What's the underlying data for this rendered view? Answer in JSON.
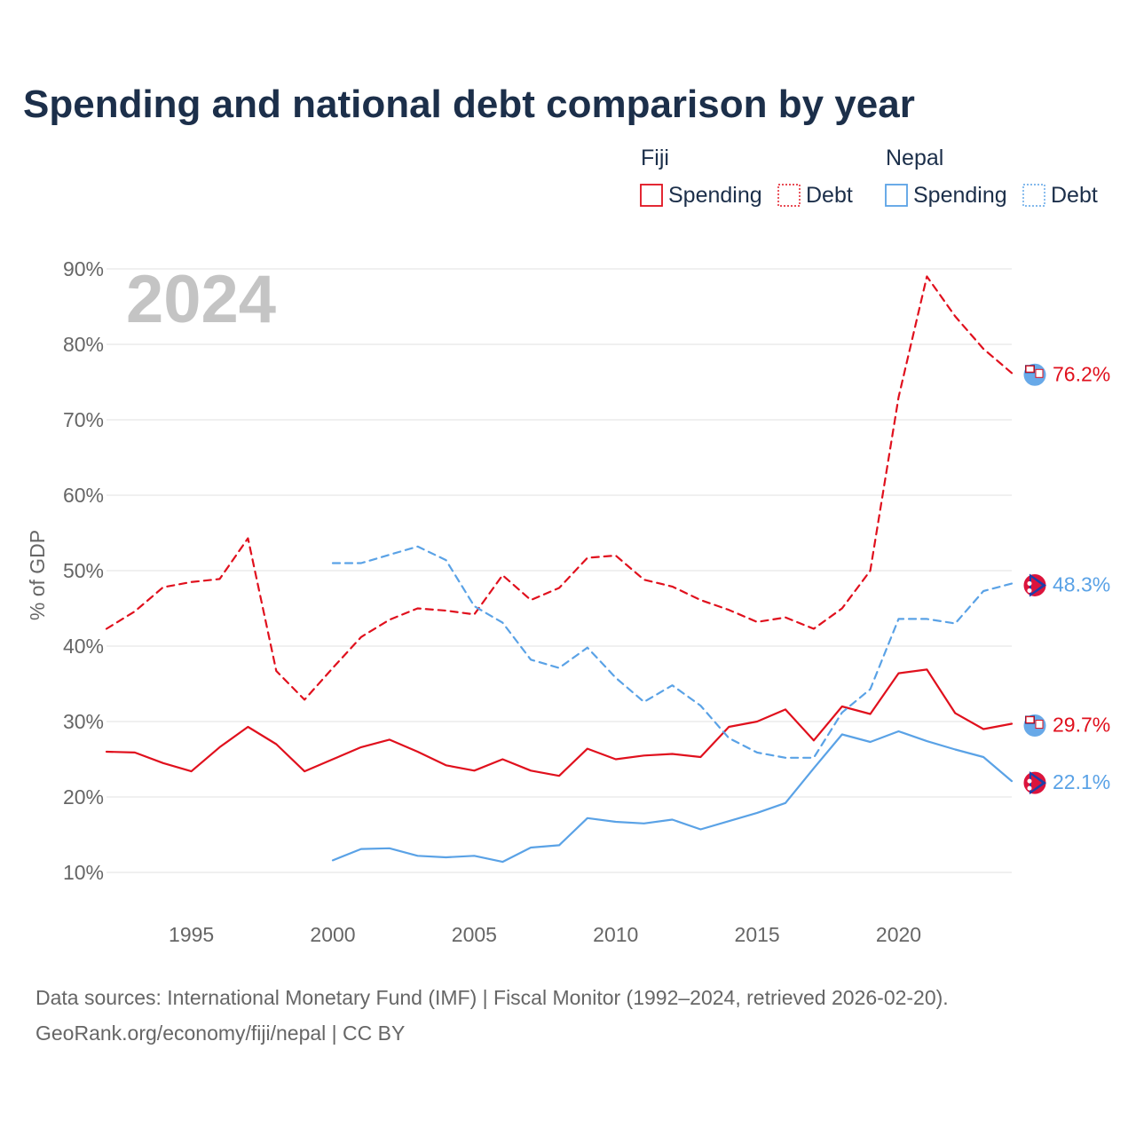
{
  "title": "Spending and national debt comparison by year",
  "legend": {
    "groups": [
      {
        "name": "Fiji",
        "color": "#e0101d",
        "items": [
          {
            "label": "Spending",
            "style": "solid"
          },
          {
            "label": "Debt",
            "style": "dotted"
          }
        ]
      },
      {
        "name": "Nepal",
        "color": "#5aa2e6",
        "items": [
          {
            "label": "Spending",
            "style": "solid"
          },
          {
            "label": "Debt",
            "style": "dotted"
          }
        ]
      }
    ]
  },
  "year_watermark": "2024",
  "source_line1": "Data sources: International Monetary Fund (IMF) | Fiscal Monitor (1992–2024, retrieved 2026-02-20).",
  "source_line2": "GeoRank.org/economy/fiji/nepal | CC BY",
  "colors": {
    "fiji": "#e0101d",
    "nepal": "#5aa2e6",
    "title": "#1c2f4a",
    "grid": "#e2e2e2",
    "tick": "#666666"
  },
  "chart_data": {
    "type": "line",
    "title": "Spending and national debt comparison by year",
    "xlabel": "",
    "ylabel": "% of GDP",
    "xlim": [
      1992,
      2024
    ],
    "ylim": [
      5,
      92
    ],
    "x_ticks": [
      1995,
      2000,
      2005,
      2010,
      2015,
      2020
    ],
    "y_ticks": [
      10,
      20,
      30,
      40,
      50,
      60,
      70,
      80,
      90
    ],
    "y_tick_labels": [
      "10%",
      "20%",
      "30%",
      "40%",
      "50%",
      "60%",
      "70%",
      "80%",
      "90%"
    ],
    "series": [
      {
        "name": "Fiji Spending",
        "country": "Fiji",
        "metric": "Spending",
        "color": "#e0101d",
        "dash": "solid",
        "x": [
          1992,
          1993,
          1994,
          1995,
          1996,
          1997,
          1998,
          1999,
          2000,
          2001,
          2002,
          2003,
          2004,
          2005,
          2006,
          2007,
          2008,
          2009,
          2010,
          2011,
          2012,
          2013,
          2014,
          2015,
          2016,
          2017,
          2018,
          2019,
          2020,
          2021,
          2022,
          2023,
          2024
        ],
        "values": [
          26.0,
          25.9,
          24.5,
          23.4,
          26.6,
          29.3,
          27.0,
          23.4,
          25.0,
          26.6,
          27.6,
          26.0,
          24.2,
          23.5,
          25.0,
          23.5,
          22.8,
          26.4,
          25.0,
          25.5,
          25.7,
          25.3,
          29.3,
          30.0,
          31.6,
          27.5,
          32.0,
          31.0,
          36.4,
          36.9,
          31.1,
          29.0,
          29.7
        ],
        "end_label": "29.7%"
      },
      {
        "name": "Fiji Debt",
        "country": "Fiji",
        "metric": "Debt",
        "color": "#e0101d",
        "dash": "dashed",
        "x": [
          1992,
          1993,
          1994,
          1995,
          1996,
          1997,
          1998,
          1999,
          2000,
          2001,
          2002,
          2003,
          2004,
          2005,
          2006,
          2007,
          2008,
          2009,
          2010,
          2011,
          2012,
          2013,
          2014,
          2015,
          2016,
          2017,
          2018,
          2019,
          2020,
          2021,
          2022,
          2023,
          2024
        ],
        "values": [
          42.3,
          44.6,
          47.8,
          48.5,
          48.9,
          54.3,
          36.7,
          32.9,
          37.1,
          41.2,
          43.5,
          45.0,
          44.7,
          44.2,
          49.4,
          46.1,
          47.7,
          51.7,
          52.0,
          48.8,
          47.9,
          46.1,
          44.8,
          43.2,
          43.8,
          42.3,
          45.0,
          50.0,
          73.0,
          89.0,
          83.7,
          79.4,
          76.2
        ],
        "end_label": "76.2%"
      },
      {
        "name": "Nepal Spending",
        "country": "Nepal",
        "metric": "Spending",
        "color": "#5aa2e6",
        "dash": "solid",
        "x": [
          2000,
          2001,
          2002,
          2003,
          2004,
          2005,
          2006,
          2007,
          2008,
          2009,
          2010,
          2011,
          2012,
          2013,
          2014,
          2015,
          2016,
          2017,
          2018,
          2019,
          2020,
          2021,
          2022,
          2023,
          2024
        ],
        "values": [
          11.6,
          13.1,
          13.2,
          12.2,
          12.0,
          12.2,
          11.4,
          13.3,
          13.6,
          17.2,
          16.7,
          16.5,
          17.0,
          15.7,
          16.8,
          17.9,
          19.2,
          23.8,
          28.3,
          27.3,
          28.7,
          27.4,
          26.3,
          25.3,
          22.1
        ],
        "end_label": "22.1%"
      },
      {
        "name": "Nepal Debt",
        "country": "Nepal",
        "metric": "Debt",
        "color": "#5aa2e6",
        "dash": "dashed",
        "x": [
          2000,
          2001,
          2002,
          2003,
          2004,
          2005,
          2006,
          2007,
          2008,
          2009,
          2010,
          2011,
          2012,
          2013,
          2014,
          2015,
          2016,
          2017,
          2018,
          2019,
          2020,
          2021,
          2022,
          2023,
          2024
        ],
        "values": [
          51.0,
          51.0,
          52.1,
          53.2,
          51.4,
          45.3,
          43.1,
          38.2,
          37.1,
          39.8,
          35.8,
          32.6,
          34.8,
          32.1,
          27.8,
          25.9,
          25.2,
          25.2,
          31.2,
          34.3,
          43.6,
          43.6,
          43.0,
          47.3,
          48.3
        ],
        "end_label": "48.3%"
      }
    ]
  }
}
